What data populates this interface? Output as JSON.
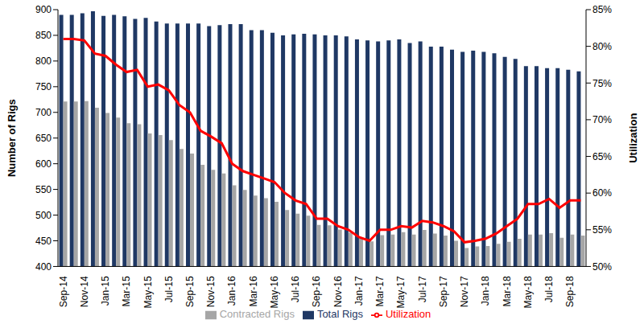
{
  "chart_data": {
    "type": "bar",
    "categories": [
      "Sep-14",
      null,
      "Nov-14",
      null,
      "Jan-15",
      null,
      "Mar-15",
      null,
      "May-15",
      null,
      "Jul-15",
      null,
      "Sep-15",
      null,
      "Nov-15",
      null,
      "Jan-16",
      null,
      "Mar-16",
      null,
      "May-16",
      null,
      "Jul-16",
      null,
      "Sep-16",
      null,
      "Nov-16",
      null,
      "Jan-17",
      null,
      "Mar-17",
      null,
      "May-17",
      null,
      "Jul-17",
      null,
      "Sep-17",
      null,
      "Nov-17",
      null,
      "Jan-18",
      null,
      "Mar-18",
      null,
      "May-18",
      null,
      "Jul-18",
      null,
      "Sep-18",
      null
    ],
    "y_label": "Number of Rigs",
    "y2_label": "Utilization",
    "ylim": [
      400,
      900
    ],
    "yticks": [
      400,
      450,
      500,
      550,
      600,
      650,
      700,
      750,
      800,
      850,
      900
    ],
    "y2lim": [
      50,
      85
    ],
    "y2ticks": [
      {
        "value": 50,
        "label": "50%"
      },
      {
        "value": 55,
        "label": "55%"
      },
      {
        "value": 60,
        "label": "60%"
      },
      {
        "value": 65,
        "label": "65%"
      },
      {
        "value": 70,
        "label": "70%"
      },
      {
        "value": 75,
        "label": "75%"
      },
      {
        "value": 80,
        "label": "80%"
      },
      {
        "value": 85,
        "label": "85%"
      }
    ],
    "grid": false,
    "legend": "bottom",
    "series": [
      {
        "name": "Total Rigs",
        "type": "bar",
        "color": "#1f3864",
        "values": [
          890,
          890,
          893,
          897,
          888,
          890,
          887,
          882,
          884,
          877,
          873,
          873,
          873,
          873,
          868,
          870,
          872,
          872,
          860,
          860,
          855,
          850,
          852,
          853,
          852,
          850,
          850,
          848,
          842,
          840,
          838,
          840,
          842,
          835,
          838,
          828,
          828,
          822,
          818,
          820,
          818,
          815,
          808,
          804,
          790,
          790,
          786,
          786,
          783,
          780
        ]
      },
      {
        "name": "Contracted Rigs",
        "type": "bar",
        "color": "#a6a6a6",
        "values": [
          721,
          721,
          722,
          709,
          699,
          690,
          679,
          677,
          659,
          656,
          646,
          629,
          620,
          598,
          588,
          581,
          558,
          549,
          538,
          533,
          526,
          510,
          503,
          499,
          481,
          480,
          472,
          466,
          455,
          449,
          461,
          462,
          467,
          462,
          471,
          464,
          460,
          450,
          436,
          439,
          440,
          444,
          448,
          454,
          462,
          462,
          465,
          456,
          462,
          460
        ]
      },
      {
        "name": "Utilization",
        "type": "line",
        "axis": "y2",
        "color": "#ff0000",
        "values": [
          81,
          81,
          80.8,
          79,
          78.7,
          77.5,
          76.5,
          76.8,
          74.5,
          74.8,
          74,
          72,
          71,
          68.5,
          67.7,
          66.8,
          64,
          63,
          62.5,
          62,
          61.5,
          60,
          59,
          58.5,
          56.5,
          56.5,
          55.5,
          55,
          54,
          53.5,
          55,
          55,
          55.5,
          55.3,
          56.2,
          56,
          55.5,
          54.8,
          53.3,
          53.5,
          53.8,
          54.5,
          55.5,
          56.5,
          58.5,
          58.5,
          59.2,
          58,
          59,
          59
        ]
      }
    ]
  }
}
